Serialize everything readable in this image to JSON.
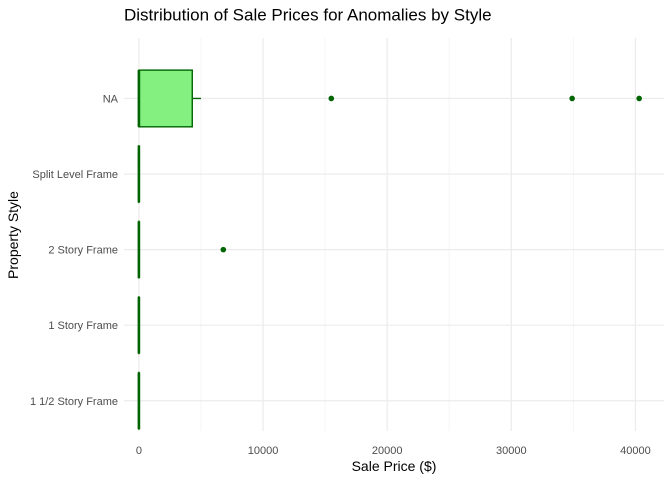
{
  "chart_data": {
    "type": "boxplot",
    "orientation": "horizontal",
    "title": "Distribution of Sale Prices for Anomalies by Style",
    "xlabel": "Sale Price ($)",
    "ylabel": "Property Style",
    "xlim": [
      -1200,
      42300
    ],
    "xticks": [
      0,
      10000,
      20000,
      30000,
      40000
    ],
    "xtick_labels": [
      "0",
      "10000",
      "20000",
      "30000",
      "40000"
    ],
    "grid": true,
    "legend": "none",
    "colors": {
      "box_fill": "#83f07f",
      "box_stroke": "#006400",
      "outlier": "#006400",
      "grid_major": "#ebebeb",
      "grid_minor": "#f5f5f5"
    },
    "categories": [
      "1 1/2 Story Frame",
      "1 Story Frame",
      "2 Story Frame",
      "Split Level Frame",
      "NA"
    ],
    "boxes": [
      {
        "category": "1 1/2 Story Frame",
        "whisker_low": 0,
        "q1": 0,
        "median": 0,
        "q3": 0,
        "whisker_high": 0,
        "outliers": []
      },
      {
        "category": "1 Story Frame",
        "whisker_low": 0,
        "q1": 0,
        "median": 0,
        "q3": 0,
        "whisker_high": 0,
        "outliers": []
      },
      {
        "category": "2 Story Frame",
        "whisker_low": 0,
        "q1": 0,
        "median": 0,
        "q3": 0,
        "whisker_high": 0,
        "outliers": [
          6800
        ]
      },
      {
        "category": "Split Level Frame",
        "whisker_low": 0,
        "q1": 0,
        "median": 0,
        "q3": 0,
        "whisker_high": 0,
        "outliers": []
      },
      {
        "category": "NA",
        "whisker_low": 0,
        "q1": 0,
        "median": 0,
        "q3": 4300,
        "whisker_high": 5000,
        "outliers": [
          15500,
          34900,
          40300
        ]
      }
    ]
  }
}
